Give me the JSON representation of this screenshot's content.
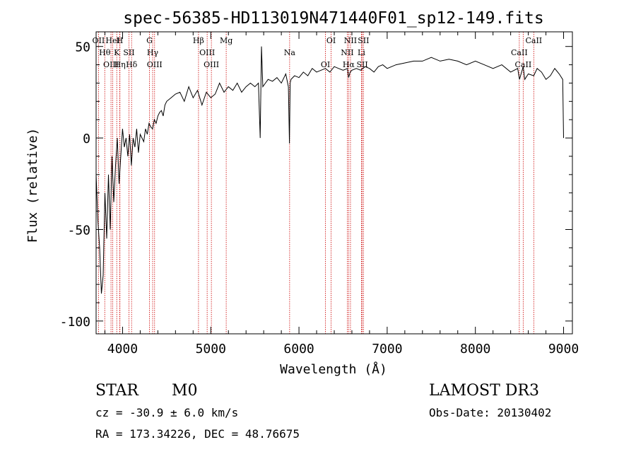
{
  "chart_data": {
    "type": "line",
    "title": "spec-56385-HD113019N471440F01_sp12-149.fits",
    "xlabel": "Wavelength (Å)",
    "ylabel": "Flux (relative)",
    "xlim": [
      3700,
      9100
    ],
    "ylim": [
      -107,
      58
    ],
    "x_ticks": [
      {
        "value": 4000,
        "label": "4000"
      },
      {
        "value": 5000,
        "label": "5000"
      },
      {
        "value": 6000,
        "label": "6000"
      },
      {
        "value": 7000,
        "label": "7000"
      },
      {
        "value": 8000,
        "label": "8000"
      },
      {
        "value": 9000,
        "label": "9000"
      }
    ],
    "y_ticks": [
      {
        "value": 50,
        "label": "50"
      },
      {
        "value": 0,
        "label": "0"
      },
      {
        "value": -50,
        "label": "-50"
      },
      {
        "value": -100,
        "label": "-100"
      }
    ],
    "series": [
      {
        "name": "spectrum",
        "x": [
          3700,
          3720,
          3740,
          3760,
          3780,
          3800,
          3820,
          3840,
          3860,
          3880,
          3900,
          3920,
          3940,
          3960,
          3980,
          4000,
          4020,
          4040,
          4060,
          4080,
          4100,
          4120,
          4140,
          4160,
          4180,
          4200,
          4220,
          4240,
          4260,
          4280,
          4300,
          4320,
          4340,
          4360,
          4380,
          4400,
          4420,
          4440,
          4460,
          4480,
          4500,
          4550,
          4600,
          4650,
          4700,
          4750,
          4800,
          4850,
          4900,
          4950,
          5000,
          5050,
          5100,
          5150,
          5200,
          5250,
          5300,
          5350,
          5400,
          5450,
          5500,
          5540,
          5560,
          5575,
          5590,
          5620,
          5650,
          5700,
          5750,
          5800,
          5850,
          5880,
          5892,
          5900,
          5910,
          5950,
          6000,
          6050,
          6100,
          6150,
          6200,
          6250,
          6300,
          6350,
          6400,
          6450,
          6500,
          6550,
          6563,
          6580,
          6600,
          6650,
          6700,
          6750,
          6800,
          6850,
          6900,
          6950,
          7000,
          7100,
          7200,
          7300,
          7400,
          7500,
          7600,
          7700,
          7800,
          7900,
          8000,
          8100,
          8200,
          8300,
          8400,
          8480,
          8500,
          8542,
          8560,
          8600,
          8662,
          8700,
          8750,
          8800,
          8850,
          8900,
          8950,
          8990,
          9000
        ],
        "values": [
          -20,
          -45,
          -60,
          -85,
          -75,
          -30,
          -55,
          -20,
          -50,
          -10,
          -35,
          -15,
          0,
          -25,
          -10,
          5,
          -5,
          0,
          -10,
          2,
          -15,
          0,
          -5,
          5,
          -8,
          2,
          0,
          -2,
          5,
          2,
          8,
          6,
          5,
          10,
          8,
          12,
          14,
          15,
          12,
          18,
          20,
          22,
          24,
          25,
          20,
          28,
          22,
          26,
          18,
          25,
          22,
          24,
          30,
          25,
          28,
          26,
          30,
          25,
          28,
          30,
          28,
          30,
          0,
          50,
          28,
          30,
          32,
          31,
          33,
          30,
          35,
          28,
          -3,
          30,
          32,
          34,
          33,
          36,
          34,
          38,
          36,
          37,
          38,
          36,
          39,
          38,
          37,
          38,
          33,
          36,
          37,
          38,
          37,
          39,
          38,
          36,
          39,
          40,
          38,
          40,
          41,
          42,
          42,
          44,
          42,
          43,
          42,
          40,
          42,
          40,
          38,
          40,
          36,
          38,
          32,
          39,
          32,
          35,
          34,
          38,
          36,
          32,
          34,
          38,
          35,
          32,
          0
        ],
        "style": "solid-black"
      }
    ],
    "line_markers": [
      {
        "label": "OII",
        "wavelength": 3727
      },
      {
        "label": "Hθ",
        "wavelength": 3798
      },
      {
        "label": "OIII",
        "wavelength": 3869
      },
      {
        "label": "HeI",
        "wavelength": 3889
      },
      {
        "label": "K",
        "wavelength": 3934
      },
      {
        "label": "Hη",
        "wavelength": 3970
      },
      {
        "label": "H",
        "wavelength": 3968
      },
      {
        "label": "SII",
        "wavelength": 4072
      },
      {
        "label": "Hδ",
        "wavelength": 4102
      },
      {
        "label": "G",
        "wavelength": 4305
      },
      {
        "label": "Hγ",
        "wavelength": 4341
      },
      {
        "label": "OIII",
        "wavelength": 4363
      },
      {
        "label": "Hβ",
        "wavelength": 4861
      },
      {
        "label": "OIII",
        "wavelength": 4959
      },
      {
        "label": "OIII",
        "wavelength": 5007
      },
      {
        "label": "Mg",
        "wavelength": 5175
      },
      {
        "label": "Na",
        "wavelength": 5894
      },
      {
        "label": "OI",
        "wavelength": 6300
      },
      {
        "label": "OI",
        "wavelength": 6364
      },
      {
        "label": "NII",
        "wavelength": 6548
      },
      {
        "label": "Hα",
        "wavelength": 6563
      },
      {
        "label": "NII",
        "wavelength": 6584
      },
      {
        "label": "Li",
        "wavelength": 6708
      },
      {
        "label": "SII",
        "wavelength": 6717
      },
      {
        "label": "SII",
        "wavelength": 6731
      },
      {
        "label": "CaII",
        "wavelength": 8498
      },
      {
        "label": "CaII",
        "wavelength": 8542
      },
      {
        "label": "CaII",
        "wavelength": 8662
      }
    ],
    "grid": false,
    "legend": "none"
  },
  "info": {
    "class_label": "STAR",
    "subclass_label": "M0",
    "survey_label": "LAMOST DR3",
    "cz_text": "cz = -30.9 ± 6.0 km/s",
    "obs_date_text": "Obs-Date: 20130402",
    "radec_text": "RA = 173.34226, DEC =  48.76675"
  },
  "colors": {
    "line": "#000000",
    "marker": "#cc0000",
    "axis": "#000000"
  }
}
